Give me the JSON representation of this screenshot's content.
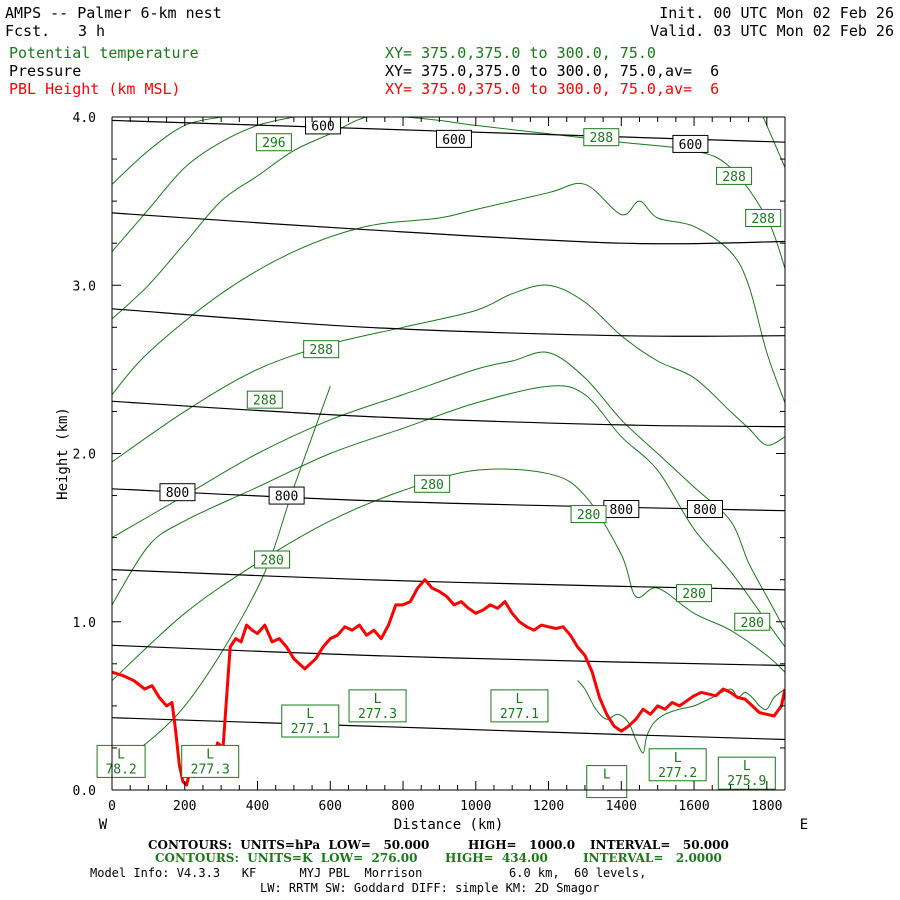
{
  "header": {
    "title": "AMPS -- Palmer 6-km nest",
    "fcst_label": "Fcst.",
    "fcst_value": "3 h",
    "init": "Init. 00 UTC Mon 02 Feb 26",
    "valid": "Valid. 03 UTC Mon 02 Feb 26"
  },
  "legend": [
    {
      "label": "Potential temperature",
      "xy": "XY= 375.0,375.0 to 300.0, 75.0",
      "color": "#1a7a1a"
    },
    {
      "label": "Pressure",
      "xy": "XY= 375.0,375.0 to 300.0, 75.0,av=  6",
      "color": "#000000"
    },
    {
      "label": "PBL Height (km MSL)",
      "xy": "XY= 375.0,375.0 to 300.0, 75.0,av=  6",
      "color": "#ff0000"
    }
  ],
  "footer": {
    "line1": {
      "a": "CONTOURS:  UNITS=hPa  LOW=   50.000",
      "b": "HIGH=   1000.0",
      "c": "INTERVAL=   50.000"
    },
    "line2": {
      "a": "CONTOURS:  UNITS=K  LOW=  276.00",
      "b": "HIGH=  434.00",
      "c": "INTERVAL=   2.0000"
    },
    "line3": "Model Info: V4.3.3   KF      MYJ PBL  Morrison            6.0 km,  60 levels,",
    "line4": "LW: RRTM SW: Goddard DIFF: simple KM: 2D Smagor"
  },
  "chart_data": {
    "type": "line",
    "xlabel": "Distance (km)",
    "ylabel": "Height (km)",
    "xlim": [
      0,
      1850
    ],
    "ylim": [
      0,
      4.0
    ],
    "x_ticks": [
      0,
      200,
      400,
      600,
      800,
      1000,
      1200,
      1400,
      1600,
      1800
    ],
    "x_tick_labels": [
      "0",
      "200",
      "400",
      "600",
      "800",
      "1000",
      "1200",
      "1400",
      "1600",
      "1800"
    ],
    "y_ticks": [
      0,
      1,
      2,
      3,
      4
    ],
    "y_tick_labels": [
      "0.0",
      "1.0",
      "2.0",
      "3.0",
      "4.0"
    ],
    "west_label": "W",
    "east_label": "E",
    "pressure_contours": [
      {
        "x": [
          0,
          1850
        ],
        "y": [
          3.98,
          3.85
        ]
      },
      {
        "x": [
          0,
          700,
          1400,
          1850
        ],
        "y": [
          3.43,
          3.33,
          3.25,
          3.26
        ]
      },
      {
        "x": [
          0,
          700,
          1400,
          1850
        ],
        "y": [
          2.86,
          2.75,
          2.7,
          2.7
        ]
      },
      {
        "x": [
          0,
          700,
          1400,
          1850
        ],
        "y": [
          2.31,
          2.22,
          2.17,
          2.16
        ]
      },
      {
        "x": [
          0,
          700,
          1400,
          1850
        ],
        "y": [
          1.79,
          1.72,
          1.68,
          1.66
        ]
      },
      {
        "x": [
          0,
          700,
          1400,
          1850
        ],
        "y": [
          1.31,
          1.25,
          1.21,
          1.19
        ]
      },
      {
        "x": [
          0,
          700,
          1400,
          1850
        ],
        "y": [
          0.86,
          0.8,
          0.76,
          0.74
        ]
      },
      {
        "x": [
          0,
          700,
          1400,
          1850
        ],
        "y": [
          0.43,
          0.38,
          0.33,
          0.3
        ]
      }
    ],
    "pressure_labels": [
      {
        "text": "600",
        "x": 580,
        "y": 3.95
      },
      {
        "text": "600",
        "x": 940,
        "y": 3.87
      },
      {
        "text": "600",
        "x": 1590,
        "y": 3.84
      },
      {
        "text": "800",
        "x": 180,
        "y": 1.77
      },
      {
        "text": "800",
        "x": 480,
        "y": 1.75
      },
      {
        "text": "800",
        "x": 1400,
        "y": 1.67
      },
      {
        "text": "800",
        "x": 1630,
        "y": 1.67
      }
    ],
    "theta_contours": [
      {
        "x": [
          0,
          200,
          400,
          500,
          600
        ],
        "y": [
          0.12,
          0.5,
          1.2,
          1.8,
          2.4
        ]
      },
      {
        "x": [
          0,
          200,
          400,
          600,
          800,
          1000,
          1200,
          1300,
          1400,
          1440,
          1500,
          1600,
          1700,
          1800,
          1850
        ],
        "y": [
          0.65,
          1.05,
          1.35,
          1.6,
          1.78,
          1.9,
          1.88,
          1.75,
          1.4,
          1.15,
          1.2,
          1.05,
          0.95,
          0.8,
          0.7
        ]
      },
      {
        "x": [
          0,
          100,
          200,
          400,
          600,
          800,
          1000,
          1200,
          1300,
          1400,
          1500,
          1600,
          1700,
          1800,
          1850
        ],
        "y": [
          1.1,
          1.45,
          1.6,
          1.8,
          2.0,
          2.15,
          2.3,
          2.4,
          2.35,
          2.1,
          1.9,
          1.55,
          1.3,
          1.0,
          0.85
        ]
      },
      {
        "x": [
          0,
          200,
          400,
          600,
          800,
          1000,
          1100,
          1200,
          1300,
          1400,
          1500,
          1600,
          1700,
          1750,
          1800,
          1850
        ],
        "y": [
          1.5,
          1.75,
          2.0,
          2.2,
          2.35,
          2.5,
          2.55,
          2.6,
          2.45,
          2.2,
          2.0,
          1.8,
          1.6,
          1.35,
          1.15,
          0.95
        ]
      },
      {
        "x": [
          0,
          200,
          400,
          600,
          800,
          1000,
          1100,
          1200,
          1300,
          1400,
          1500,
          1600,
          1700,
          1750,
          1800,
          1850
        ],
        "y": [
          1.95,
          2.25,
          2.5,
          2.65,
          2.75,
          2.85,
          2.95,
          3.0,
          2.9,
          2.7,
          2.55,
          2.45,
          2.25,
          2.15,
          2.05,
          2.1
        ]
      },
      {
        "x": [
          0,
          100,
          300,
          500,
          700,
          900,
          1000,
          1200,
          1300,
          1400,
          1450,
          1500,
          1600,
          1700,
          1750,
          1800,
          1850
        ],
        "y": [
          2.35,
          2.6,
          2.95,
          3.2,
          3.35,
          3.4,
          3.45,
          3.55,
          3.6,
          3.42,
          3.5,
          3.4,
          3.35,
          3.2,
          3.0,
          2.6,
          2.3
        ]
      },
      {
        "x": [
          0,
          100,
          200,
          300,
          400,
          500,
          600,
          700,
          800,
          900,
          1000,
          1200,
          1400,
          1600,
          1700,
          1800,
          1850
        ],
        "y": [
          2.8,
          3.0,
          3.25,
          3.5,
          3.65,
          3.8,
          3.9,
          4.0,
          4.0,
          3.98,
          3.95,
          3.9,
          3.85,
          3.8,
          3.7,
          3.4,
          3.1
        ]
      },
      {
        "x": [
          0,
          100,
          200,
          300,
          400,
          500
        ],
        "y": [
          3.2,
          3.45,
          3.7,
          3.85,
          3.95,
          4.0
        ]
      },
      {
        "x": [
          0,
          100,
          200,
          300
        ],
        "y": [
          3.6,
          3.8,
          3.95,
          4.0
        ]
      },
      {
        "x": [
          1790,
          1820,
          1850
        ],
        "y": [
          4.0,
          3.85,
          3.7
        ]
      }
    ],
    "theta_labels": [
      {
        "text": "296",
        "x": 445,
        "y": 3.85
      },
      {
        "text": "288",
        "x": 1345,
        "y": 3.88
      },
      {
        "text": "288",
        "x": 1710,
        "y": 3.65
      },
      {
        "text": "288",
        "x": 1790,
        "y": 3.4
      },
      {
        "text": "288",
        "x": 575,
        "y": 2.62
      },
      {
        "text": "288",
        "x": 420,
        "y": 2.32
      },
      {
        "text": "280",
        "x": 880,
        "y": 1.82
      },
      {
        "text": "280",
        "x": 1310,
        "y": 1.64
      },
      {
        "text": "280",
        "x": 440,
        "y": 1.37
      },
      {
        "text": "280",
        "x": 1600,
        "y": 1.17
      },
      {
        "text": "280",
        "x": 1760,
        "y": 1.0
      }
    ],
    "lows": [
      {
        "letter": "L",
        "value": "78.2",
        "x": 25,
        "y": 0.17
      },
      {
        "letter": "L",
        "value": "277.3",
        "x": 270,
        "y": 0.17
      },
      {
        "letter": "L",
        "value": "277.1",
        "x": 545,
        "y": 0.41
      },
      {
        "letter": "L",
        "value": "277.3",
        "x": 730,
        "y": 0.5
      },
      {
        "letter": "L",
        "value": "277.1",
        "x": 1120,
        "y": 0.5
      },
      {
        "letter": "L",
        "value": "",
        "x": 1360,
        "y": 0.05
      },
      {
        "letter": "L",
        "value": "277.2",
        "x": 1555,
        "y": 0.15
      },
      {
        "letter": "L",
        "value": "275.9",
        "x": 1745,
        "y": 0.1
      }
    ],
    "terrain": {
      "x": [
        1280,
        1300,
        1330,
        1360,
        1390,
        1420,
        1440,
        1460,
        1470,
        1490,
        1520,
        1560,
        1600,
        1650,
        1700,
        1720,
        1740,
        1760,
        1780,
        1800,
        1820,
        1850
      ],
      "y": [
        0.65,
        0.6,
        0.48,
        0.42,
        0.45,
        0.4,
        0.3,
        0.22,
        0.32,
        0.4,
        0.45,
        0.48,
        0.5,
        0.55,
        0.6,
        0.55,
        0.58,
        0.55,
        0.5,
        0.48,
        0.55,
        0.6
      ]
    },
    "pbl_height": {
      "name": "PBL Height (km MSL)",
      "color": "#ff0000",
      "x": [
        0,
        30,
        60,
        90,
        110,
        130,
        150,
        165,
        175,
        185,
        195,
        205,
        215,
        225,
        240,
        255,
        265,
        280,
        290,
        305,
        315,
        325,
        340,
        355,
        370,
        385,
        400,
        420,
        440,
        460,
        480,
        500,
        530,
        560,
        580,
        600,
        620,
        640,
        660,
        680,
        700,
        720,
        740,
        760,
        780,
        800,
        820,
        840,
        860,
        880,
        900,
        920,
        940,
        960,
        980,
        1000,
        1020,
        1040,
        1060,
        1080,
        1100,
        1120,
        1140,
        1160,
        1180,
        1200,
        1220,
        1240,
        1260,
        1280,
        1300,
        1320,
        1340,
        1360,
        1380,
        1400,
        1420,
        1440,
        1460,
        1480,
        1500,
        1520,
        1540,
        1560,
        1580,
        1600,
        1620,
        1640,
        1660,
        1680,
        1700,
        1720,
        1740,
        1760,
        1780,
        1800,
        1820,
        1840,
        1850
      ],
      "y": [
        0.7,
        0.68,
        0.65,
        0.6,
        0.62,
        0.55,
        0.5,
        0.52,
        0.35,
        0.15,
        0.05,
        0.03,
        0.12,
        0.08,
        0.15,
        0.1,
        0.2,
        0.18,
        0.28,
        0.25,
        0.55,
        0.85,
        0.9,
        0.88,
        0.98,
        0.95,
        0.93,
        0.98,
        0.88,
        0.9,
        0.85,
        0.78,
        0.72,
        0.78,
        0.85,
        0.9,
        0.92,
        0.97,
        0.95,
        0.98,
        0.92,
        0.95,
        0.9,
        0.98,
        1.1,
        1.1,
        1.12,
        1.2,
        1.25,
        1.2,
        1.18,
        1.15,
        1.1,
        1.12,
        1.08,
        1.05,
        1.07,
        1.1,
        1.08,
        1.12,
        1.05,
        1.0,
        0.97,
        0.95,
        0.98,
        0.97,
        0.96,
        0.97,
        0.92,
        0.85,
        0.8,
        0.7,
        0.55,
        0.45,
        0.38,
        0.35,
        0.38,
        0.42,
        0.48,
        0.45,
        0.5,
        0.48,
        0.52,
        0.5,
        0.53,
        0.56,
        0.58,
        0.57,
        0.56,
        0.6,
        0.58,
        0.55,
        0.54,
        0.5,
        0.46,
        0.45,
        0.44,
        0.5,
        0.6
      ]
    }
  }
}
